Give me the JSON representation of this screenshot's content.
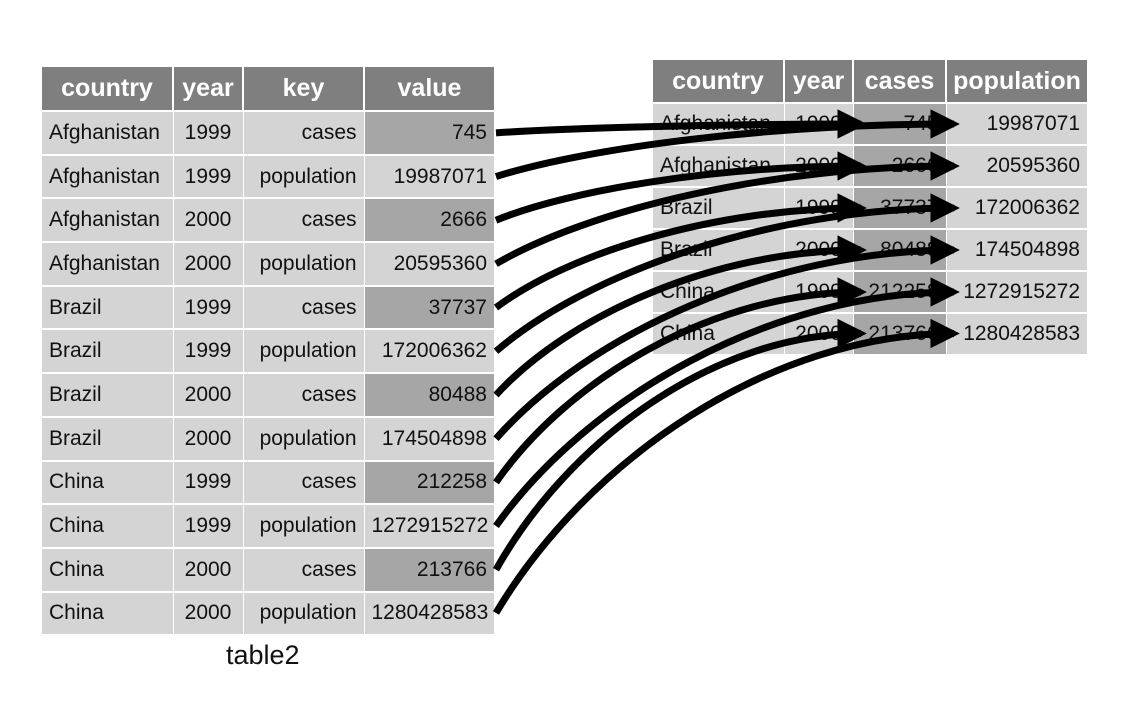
{
  "table2": {
    "headers": [
      "country",
      "year",
      "key",
      "value"
    ],
    "rows": [
      [
        "Afghanistan",
        "1999",
        "cases",
        "745"
      ],
      [
        "Afghanistan",
        "1999",
        "population",
        "19987071"
      ],
      [
        "Afghanistan",
        "2000",
        "cases",
        "2666"
      ],
      [
        "Afghanistan",
        "2000",
        "population",
        "20595360"
      ],
      [
        "Brazil",
        "1999",
        "cases",
        "37737"
      ],
      [
        "Brazil",
        "1999",
        "population",
        "172006362"
      ],
      [
        "Brazil",
        "2000",
        "cases",
        "80488"
      ],
      [
        "Brazil",
        "2000",
        "population",
        "174504898"
      ],
      [
        "China",
        "1999",
        "cases",
        "212258"
      ],
      [
        "China",
        "1999",
        "population",
        "1272915272"
      ],
      [
        "China",
        "2000",
        "cases",
        "213766"
      ],
      [
        "China",
        "2000",
        "population",
        "1280428583"
      ]
    ],
    "caption": "table2"
  },
  "tidy": {
    "headers": [
      "country",
      "year",
      "cases",
      "population"
    ],
    "rows": [
      [
        "Afghanistan",
        "1999",
        "745",
        "19987071"
      ],
      [
        "Afghanistan",
        "2000",
        "2666",
        "20595360"
      ],
      [
        "Brazil",
        "1999",
        "37737",
        "172006362"
      ],
      [
        "Brazil",
        "2000",
        "80488",
        "174504898"
      ],
      [
        "China",
        "1999",
        "212258",
        "1272915272"
      ],
      [
        "China",
        "2000",
        "213766",
        "1280428583"
      ]
    ]
  },
  "colors": {
    "header_bg": "#7f7f7f",
    "cell_bg": "#d4d4d4",
    "highlight_bg": "#a6a6a6",
    "arrow": "#000000"
  }
}
